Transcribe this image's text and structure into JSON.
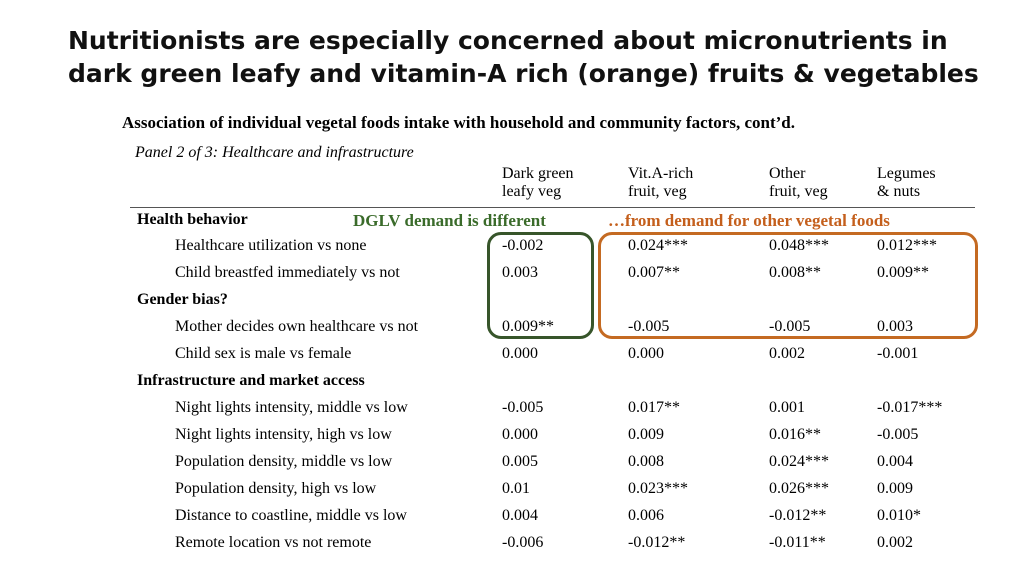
{
  "title": "Nutritionists are especially concerned about micronutrients in dark green leafy and vitamin-A rich (orange) fruits & vegetables",
  "subtitle": "Association of individual vegetal foods intake with household and community factors, cont’d.",
  "panel": "Panel 2 of 3: Healthcare and infrastructure",
  "columns": [
    {
      "line1": "Dark green",
      "line2": "leafy veg"
    },
    {
      "line1": "Vit.A-rich",
      "line2": "fruit, veg"
    },
    {
      "line1": "Other",
      "line2": "fruit, veg"
    },
    {
      "line1": "Legumes",
      "line2": "& nuts"
    }
  ],
  "annotations": {
    "green": "DGLV demand is different",
    "orange": "…from demand for other vegetal foods"
  },
  "annotation_colors": {
    "green": "#37552a",
    "orange": "#c46a22"
  },
  "sections": {
    "health": "Health behavior",
    "gender": "Gender bias?",
    "infra": "Infrastructure and market access"
  },
  "rows": [
    {
      "label": "Healthcare utilization vs none",
      "values": [
        "-0.002",
        "0.024***",
        "0.048***",
        "0.012***"
      ]
    },
    {
      "label": "Child breastfed immediately vs not",
      "values": [
        "0.003",
        "0.007**",
        "0.008**",
        "0.009**"
      ]
    },
    {
      "label": "Mother decides own healthcare vs not",
      "values": [
        "0.009**",
        "-0.005",
        "-0.005",
        "0.003"
      ]
    },
    {
      "label": "Child sex is male vs female",
      "values": [
        "0.000",
        "0.000",
        "0.002",
        "-0.001"
      ]
    },
    {
      "label": "Night lights intensity, middle vs low",
      "values": [
        "-0.005",
        "0.017**",
        "0.001",
        "-0.017***"
      ]
    },
    {
      "label": "Night lights intensity, high vs low",
      "values": [
        "0.000",
        "0.009",
        "0.016**",
        "-0.005"
      ]
    },
    {
      "label": "Population density, middle vs low",
      "values": [
        "0.005",
        "0.008",
        "0.024***",
        "0.004"
      ]
    },
    {
      "label": "Population density, high vs low",
      "values": [
        "0.01",
        "0.023***",
        "0.026***",
        "0.009"
      ]
    },
    {
      "label": "Distance to coastline, middle vs low",
      "values": [
        "0.004",
        "0.006",
        "-0.012**",
        "0.010*"
      ]
    },
    {
      "label": "Remote location vs not remote",
      "values": [
        "-0.006",
        "-0.012**",
        "-0.011**",
        "0.002"
      ]
    }
  ]
}
